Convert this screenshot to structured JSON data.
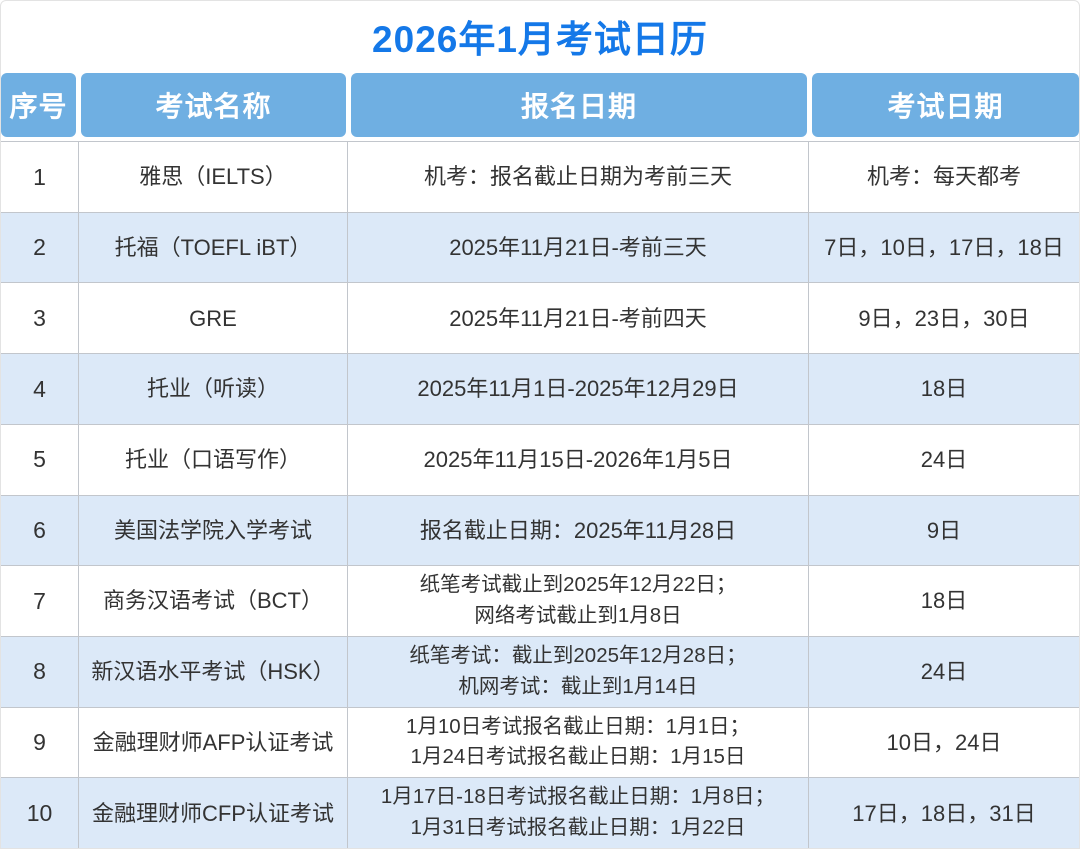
{
  "colors": {
    "title_color": "#1478e8",
    "header_bg": "#6fafe2",
    "header_text": "#ffffff",
    "row_bg": "#ffffff",
    "row_alt_bg": "#dce9f8",
    "border_color": "#c2c6cc",
    "body_text": "#333333"
  },
  "chart_data": {
    "type": "table",
    "title": "2026年1月考试日历",
    "columns": [
      {
        "key": "index",
        "label": "序号"
      },
      {
        "key": "name",
        "label": "考试名称"
      },
      {
        "key": "registration",
        "label": "报名日期"
      },
      {
        "key": "exam_date",
        "label": "考试日期"
      }
    ],
    "rows": [
      {
        "index": "1",
        "name": "雅思（IELTS）",
        "registration": [
          "机考：报名截止日期为考前三天"
        ],
        "exam_date": "机考：每天都考"
      },
      {
        "index": "2",
        "name": "托福（TOEFL iBT）",
        "registration": [
          "2025年11月21日-考前三天"
        ],
        "exam_date": "7日，10日，17日，18日"
      },
      {
        "index": "3",
        "name": "GRE",
        "registration": [
          "2025年11月21日-考前四天"
        ],
        "exam_date": "9日，23日，30日"
      },
      {
        "index": "4",
        "name": "托业（听读）",
        "registration": [
          "2025年11月1日-2025年12月29日"
        ],
        "exam_date": "18日"
      },
      {
        "index": "5",
        "name": "托业（口语写作）",
        "registration": [
          "2025年11月15日-2026年1月5日"
        ],
        "exam_date": "24日"
      },
      {
        "index": "6",
        "name": "美国法学院入学考试",
        "registration": [
          "报名截止日期：2025年11月28日"
        ],
        "exam_date": "9日"
      },
      {
        "index": "7",
        "name": "商务汉语考试（BCT）",
        "registration": [
          "纸笔考试截止到2025年12月22日；",
          "网络考试截止到1月8日"
        ],
        "exam_date": "18日"
      },
      {
        "index": "8",
        "name": "新汉语水平考试（HSK）",
        "registration": [
          "纸笔考试：截止到2025年12月28日；",
          "机网考试：截止到1月14日"
        ],
        "exam_date": "24日"
      },
      {
        "index": "9",
        "name": "金融理财师AFP认证考试",
        "registration": [
          "1月10日考试报名截止日期：1月1日；",
          "1月24日考试报名截止日期：1月15日"
        ],
        "exam_date": "10日，24日"
      },
      {
        "index": "10",
        "name": "金融理财师CFP认证考试",
        "registration": [
          "1月17日-18日考试报名截止日期：1月8日；",
          "1月31日考试报名截止日期：1月22日"
        ],
        "exam_date": "17日，18日，31日"
      }
    ]
  }
}
